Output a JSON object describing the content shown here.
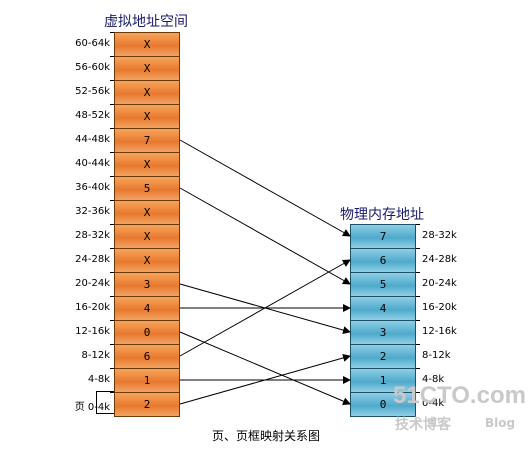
{
  "virtual_title": "虚拟地址空间",
  "physical_title": "物理内存地址",
  "caption": "页、页框映射关系图",
  "page_label_prefix": "页",
  "virtual_pages": [
    {
      "range": "60-64k",
      "frame": "X"
    },
    {
      "range": "56-60k",
      "frame": "X"
    },
    {
      "range": "52-56k",
      "frame": "X"
    },
    {
      "range": "48-52k",
      "frame": "X"
    },
    {
      "range": "44-48k",
      "frame": "7"
    },
    {
      "range": "40-44k",
      "frame": "X"
    },
    {
      "range": "36-40k",
      "frame": "5"
    },
    {
      "range": "32-36k",
      "frame": "X"
    },
    {
      "range": "28-32k",
      "frame": "X"
    },
    {
      "range": "24-28k",
      "frame": "X"
    },
    {
      "range": "20-24k",
      "frame": "3"
    },
    {
      "range": "16-20k",
      "frame": "4"
    },
    {
      "range": "12-16k",
      "frame": "0"
    },
    {
      "range": "8-12k",
      "frame": "6"
    },
    {
      "range": "4-8k",
      "frame": "1"
    },
    {
      "range": "0-4k",
      "frame": "2"
    }
  ],
  "physical_frames": [
    {
      "number": "7",
      "range": "28-32k"
    },
    {
      "number": "6",
      "range": "24-28k"
    },
    {
      "number": "5",
      "range": "20-24k"
    },
    {
      "number": "4",
      "range": "16-20k"
    },
    {
      "number": "3",
      "range": "12-16k"
    },
    {
      "number": "2",
      "range": "8-12k"
    },
    {
      "number": "1",
      "range": "4-8k"
    },
    {
      "number": "0",
      "range": "0-4k"
    }
  ],
  "watermark": {
    "line1": "51CTO.com",
    "line2": "技术博客",
    "line3": "Blog"
  },
  "colors": {
    "virtual_cell": "#e8792e",
    "physical_cell": "#4fa9cb",
    "arrow": "#000000"
  }
}
